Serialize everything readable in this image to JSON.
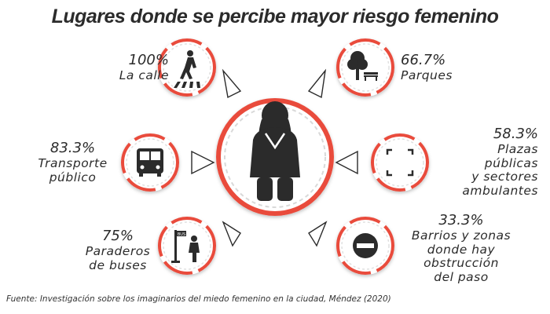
{
  "title": "Lugares donde se percibe mayor riesgo femenino",
  "chart_data": {
    "type": "infographic",
    "title": "Lugares donde se percibe mayor riesgo femenino",
    "items": [
      {
        "pct": "100%",
        "label": "La calle",
        "value": 100,
        "icon": "pedestrian-crossing-icon"
      },
      {
        "pct": "66.7%",
        "label": "Parques",
        "value": 66.7,
        "icon": "park-tree-bench-icon"
      },
      {
        "pct": "83.3%",
        "label": "Transporte público",
        "value": 83.3,
        "icon": "bus-icon"
      },
      {
        "pct": "58.3%",
        "label": "Plazas públicas y sectores ambulantes",
        "value": 58.3,
        "icon": "public-square-icon"
      },
      {
        "pct": "75%",
        "label": "Paraderos de buses",
        "value": 75,
        "icon": "bus-stop-icon"
      },
      {
        "pct": "33.3%",
        "label": "Barrios y zonas donde hay obstrucción del paso",
        "value": 33.3,
        "icon": "no-entry-icon"
      }
    ]
  },
  "labels": {
    "calle": {
      "pct": "100%",
      "lines": [
        "La calle"
      ]
    },
    "parques": {
      "pct": "66.7%",
      "lines": [
        "Parques"
      ]
    },
    "transporte": {
      "pct": "83.3%",
      "lines": [
        "Transporte",
        "público"
      ]
    },
    "plazas": {
      "pct": "58.3%",
      "lines": [
        "Plazas",
        "públicas",
        "y sectores",
        "ambulantes"
      ]
    },
    "paraderos": {
      "pct": "75%",
      "lines": [
        "Paraderos",
        "de buses"
      ]
    },
    "barrios": {
      "pct": "33.3%",
      "lines": [
        "Barrios y zonas",
        "donde hay",
        "obstrucción",
        "del paso"
      ]
    }
  },
  "source": "Fuente: Investigación sobre los imaginarios del miedo femenino en la ciudad, Méndez (2020)",
  "colors": {
    "accent": "#e94b3c",
    "ink": "#2b2b2b",
    "dash": "#d9d9d9"
  }
}
